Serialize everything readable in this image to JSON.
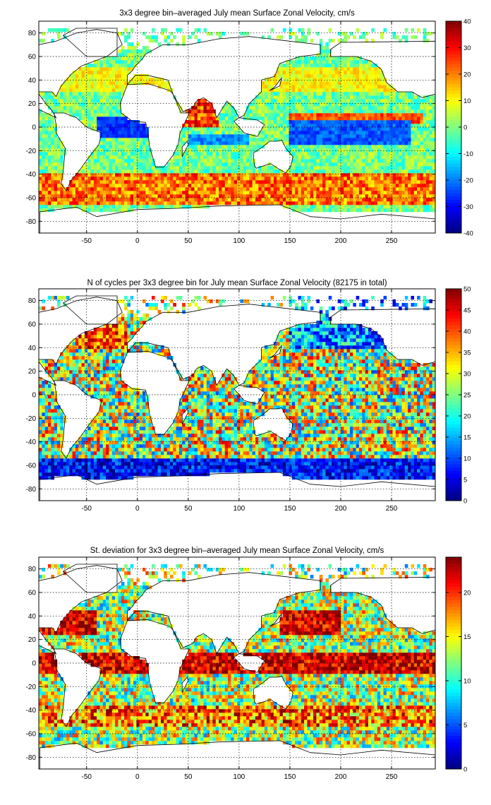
{
  "chart_data": [
    {
      "type": "heatmap",
      "id": "panel1",
      "title": "3x3 degree bin–averaged July mean Surface Zonal Velocity, cm/s",
      "quantity": "mean zonal velocity",
      "xlim": [
        -97,
        293
      ],
      "ylim": [
        -90,
        90
      ],
      "x_ticks": [
        -50,
        0,
        50,
        100,
        150,
        200,
        250
      ],
      "y_ticks": [
        80,
        60,
        40,
        20,
        0,
        -20,
        -40,
        -60,
        -80
      ],
      "colorbar": {
        "min": -40,
        "max": 40,
        "ticks": [
          40,
          30,
          20,
          10,
          0,
          -10,
          -20,
          -30,
          -40
        ],
        "colormap": "jet"
      },
      "grid": true
    },
    {
      "type": "heatmap",
      "id": "panel2",
      "title": "N of cycles per 3x3 degree bin for July mean Surface Zonal Velocity (82175 in total)",
      "quantity": "cycle count",
      "xlim": [
        -97,
        293
      ],
      "ylim": [
        -90,
        90
      ],
      "x_ticks": [
        -50,
        0,
        50,
        100,
        150,
        200,
        250
      ],
      "y_ticks": [
        80,
        60,
        40,
        20,
        0,
        -20,
        -40,
        -60,
        -80
      ],
      "colorbar": {
        "min": 0,
        "max": 50,
        "ticks": [
          50,
          45,
          40,
          35,
          30,
          25,
          20,
          15,
          10,
          5,
          0
        ],
        "colormap": "jet"
      },
      "grid": true
    },
    {
      "type": "heatmap",
      "id": "panel3",
      "title": "St. deviation for 3x3 degree bin–averaged July mean Surface Zonal Velocity, cm/s",
      "quantity": "standard deviation",
      "xlim": [
        -97,
        293
      ],
      "ylim": [
        -90,
        90
      ],
      "x_ticks": [
        -50,
        0,
        50,
        100,
        150,
        200,
        250
      ],
      "y_ticks": [
        80,
        60,
        40,
        20,
        0,
        -20,
        -40,
        -60,
        -80
      ],
      "colorbar": {
        "min": 0,
        "max": 24,
        "ticks": [
          20,
          15,
          10,
          5,
          0
        ],
        "colormap": "jet"
      },
      "grid": true
    }
  ]
}
